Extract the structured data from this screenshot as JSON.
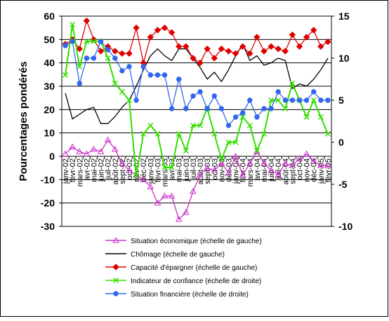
{
  "chart_data": {
    "type": "line",
    "y_label": "Pourcentages pondérés",
    "categories": [
      "janv-02",
      "févr-02",
      "mars-02",
      "avr-02",
      "mai-02",
      "juin-02",
      "juil-02",
      "août-02",
      "sept-02",
      "oct-02",
      "nov-02",
      "déc-02",
      "janv-03",
      "févr-03",
      "mars-03",
      "avr-03",
      "mai-03",
      "juin-03",
      "juil-03",
      "août-03",
      "sept-03",
      "oct-03",
      "nov-03",
      "déc-03",
      "janv-04",
      "févr-04",
      "mars-04",
      "avr-04",
      "mai-04",
      "juin-04",
      "juil-04",
      "août-04",
      "sept-04",
      "oct-04",
      "nov-04",
      "déc-04",
      "janv-05",
      "févr-05"
    ],
    "ylim": [
      -30,
      60
    ],
    "yticks": [
      -30,
      -20,
      -10,
      0,
      10,
      20,
      30,
      40,
      50,
      60
    ],
    "y2lim": [
      -10,
      15
    ],
    "y2ticks": [
      -10,
      -5,
      0,
      5,
      10,
      15
    ],
    "grid": true,
    "series": [
      {
        "name": "Situation économique (échelle de gauche)",
        "color": "#cc33cc",
        "marker": "triangle",
        "values": [
          1,
          4,
          2,
          1,
          3,
          2,
          7,
          3,
          -3,
          -6,
          -8,
          -10,
          -13,
          -20,
          -17,
          -17,
          -27,
          -24,
          -15,
          -8,
          -5,
          -6,
          -3,
          -7,
          0,
          -8,
          -3,
          2,
          -3,
          -6,
          -8,
          -3,
          -4,
          -1,
          1,
          -2,
          -4,
          -4
        ]
      },
      {
        "name": "Chômage (échelle de gauche)",
        "color": "#000000",
        "marker": "none",
        "values": [
          27,
          16,
          18,
          20,
          21,
          14,
          14,
          17,
          21,
          24,
          30,
          37,
          43,
          46,
          43,
          41,
          46,
          46,
          42,
          38,
          33,
          36,
          32,
          37,
          43,
          48,
          41,
          43,
          39,
          40,
          42,
          41,
          29,
          31,
          30,
          33,
          37,
          42
        ]
      },
      {
        "name": "Capacité d'épargner (échelle de gauche)",
        "color": "#e00000",
        "marker": "diamond",
        "values": [
          48,
          50,
          46,
          58,
          50,
          45,
          47,
          45,
          44,
          44,
          55,
          40,
          51,
          54,
          55,
          53,
          47,
          47,
          42,
          40,
          46,
          42,
          46,
          45,
          44,
          47,
          44,
          51,
          45,
          47,
          46,
          45,
          52,
          47,
          51,
          54,
          47,
          49
        ]
      },
      {
        "name": "Indicateur de confiance (échelle de droite)",
        "color": "#33dd00",
        "marker": "x",
        "axis": "y2",
        "values": [
          8,
          14,
          9,
          12,
          12,
          12,
          10,
          7,
          6,
          5,
          -4,
          1,
          2,
          1,
          -3,
          -3,
          1,
          -1,
          2,
          2,
          4,
          1,
          -2,
          0,
          0,
          3,
          2,
          -1,
          1,
          5,
          5,
          4,
          7,
          5,
          3,
          5,
          3,
          1
        ]
      },
      {
        "name": "Situation financière (échelle de droite)",
        "color": "#3366ee",
        "marker": "circle",
        "axis": "y2",
        "values": [
          11.5,
          12,
          7,
          10,
          10,
          12,
          11,
          10,
          8.5,
          9,
          5,
          9,
          8,
          8,
          8,
          4,
          7.5,
          4,
          5.5,
          6,
          4,
          5.5,
          4,
          2,
          3,
          3.5,
          5,
          3,
          4,
          4,
          6,
          5,
          5,
          5,
          5,
          6,
          5,
          5
        ]
      }
    ]
  }
}
